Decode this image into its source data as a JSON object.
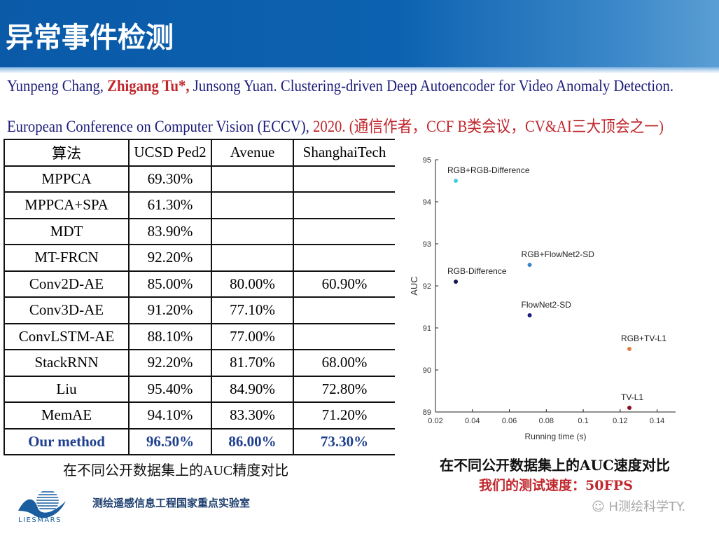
{
  "header": {
    "title": "异常事件检测"
  },
  "citation": {
    "authors_pre": "Yunpeng Chang, ",
    "corresponding_author": "Zhigang Tu*,",
    "authors_post": " Junsong Yuan. Clustering-driven Deep Autoencoder for Video Anomaly Detection.",
    "venue": "European Conference on Computer Vision (ECCV), ",
    "year_note": "2020. (通信作者，CCF B类会议，CV&AI三大顶会之一)"
  },
  "table": {
    "headers": [
      "算法",
      "UCSD Ped2",
      "Avenue",
      "ShanghaiTech"
    ],
    "rows": [
      [
        "MPPCA",
        "69.30%",
        "",
        ""
      ],
      [
        "MPPCA+SPA",
        "61.30%",
        "",
        ""
      ],
      [
        "MDT",
        "83.90%",
        "",
        ""
      ],
      [
        "MT-FRCN",
        "92.20%",
        "",
        ""
      ],
      [
        "Conv2D-AE",
        "85.00%",
        "80.00%",
        "60.90%"
      ],
      [
        "Conv3D-AE",
        "91.20%",
        "77.10%",
        ""
      ],
      [
        "ConvLSTM-AE",
        "88.10%",
        "77.00%",
        ""
      ],
      [
        "StackRNN",
        "92.20%",
        "81.70%",
        "68.00%"
      ],
      [
        "Liu",
        "95.40%",
        "84.90%",
        "72.80%"
      ],
      [
        "MemAE",
        "94.10%",
        "83.30%",
        "71.20%"
      ],
      [
        "Our method",
        "96.50%",
        "86.00%",
        "73.30%"
      ]
    ],
    "caption": "在不同公开数据集上的AUC精度对比",
    "highlight_color": "#1f3f8f"
  },
  "chart_data": {
    "type": "scatter",
    "title": "",
    "xlabel": "Running time (s)",
    "ylabel": "AUC",
    "xlim": [
      0.02,
      0.15
    ],
    "ylim": [
      89,
      95
    ],
    "xticks": [
      "0.02",
      "0.04",
      "0.06",
      "0.08",
      "0.1",
      "0.12",
      "0.14"
    ],
    "yticks": [
      "89",
      "90",
      "91",
      "92",
      "93",
      "94",
      "95"
    ],
    "grid": false,
    "points": [
      {
        "label": "RGB+RGB-Difference",
        "x": 0.031,
        "y": 94.5,
        "color": "#40d0e0"
      },
      {
        "label": "RGB+FlowNet2-SD",
        "x": 0.071,
        "y": 92.5,
        "color": "#3a86c8"
      },
      {
        "label": "RGB-Difference",
        "x": 0.031,
        "y": 92.1,
        "color": "#141450"
      },
      {
        "label": "FlowNet2-SD",
        "x": 0.071,
        "y": 91.3,
        "color": "#1c1c80"
      },
      {
        "label": "RGB+TV-L1",
        "x": 0.125,
        "y": 90.5,
        "color": "#e08040"
      },
      {
        "label": "TV-L1",
        "x": 0.125,
        "y": 89.1,
        "color": "#8a1020"
      }
    ]
  },
  "chart_caption": "在不同公开数据集上的AUC速度对比",
  "speed_caption": "我们的测试速度：50FPS",
  "footer": {
    "logo_text": "LIESMARS",
    "lab_name": "测绘遥感信息工程国家重点实验室",
    "watermark": "H测绘科学TY."
  }
}
